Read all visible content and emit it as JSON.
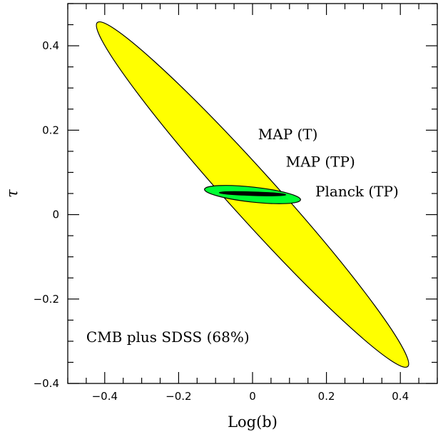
{
  "chart_data": {
    "type": "ellipse-contours",
    "title": "",
    "xlabel": "Log(b)",
    "ylabel": "τ",
    "xlim": [
      -0.5,
      0.5
    ],
    "ylim": [
      -0.4,
      0.5
    ],
    "x_ticks": [
      -0.4,
      -0.2,
      0,
      0.2,
      0.4
    ],
    "x_tick_labels": [
      "−0.4",
      "−0.2",
      "0",
      "0.2",
      "0.4"
    ],
    "y_ticks": [
      -0.4,
      -0.2,
      0,
      0.2,
      0.4
    ],
    "y_tick_labels": [
      "−0.4",
      "−0.2",
      "0",
      "0.2",
      "0.4"
    ],
    "grid": false,
    "annotation": "CMB plus SDSS (68%)",
    "series": [
      {
        "name": "MAP (T)",
        "color": "#ffff00",
        "center": [
          0.0,
          0.05
        ],
        "tips": [
          [
            -0.42,
            0.455
          ],
          [
            0.42,
            -0.36
          ]
        ],
        "label_anchor": [
          0.015,
          0.19
        ]
      },
      {
        "name": "MAP (TP)",
        "color": "#00ff33",
        "center": [
          0.0,
          0.05
        ],
        "tips": [
          [
            -0.13,
            0.06
          ],
          [
            0.13,
            0.035
          ]
        ],
        "label_anchor": [
          0.09,
          0.125
        ]
      },
      {
        "name": "Planck (TP)",
        "color": "#000000",
        "center": [
          0.0,
          0.05
        ],
        "tips": [
          [
            -0.09,
            0.052
          ],
          [
            0.09,
            0.047
          ]
        ],
        "label_anchor": [
          0.17,
          0.055
        ]
      }
    ]
  }
}
